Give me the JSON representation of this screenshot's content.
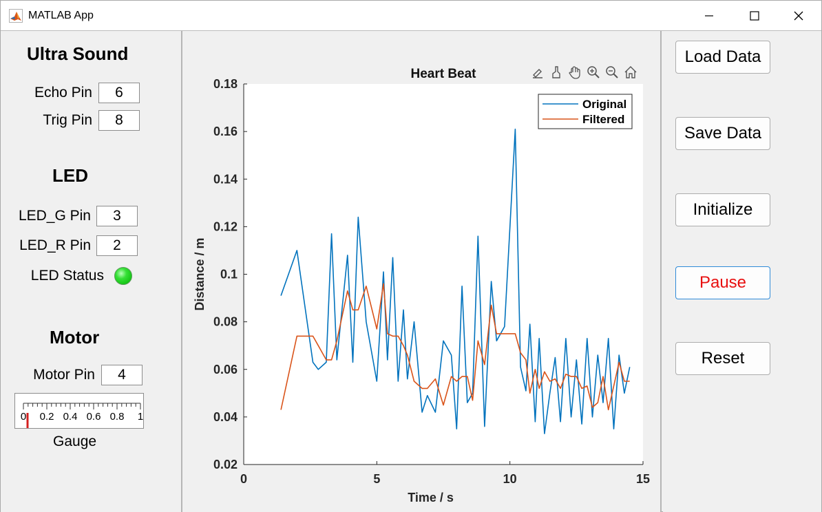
{
  "window": {
    "title": "MATLAB App"
  },
  "left": {
    "ultrasound_title": "Ultra Sound",
    "echo_label": "Echo Pin",
    "echo_value": "6",
    "trig_label": "Trig Pin",
    "trig_value": "8",
    "led_title": "LED",
    "ledg_label": "LED_G Pin",
    "ledg_value": "3",
    "ledr_label": "LED_R Pin",
    "ledr_value": "2",
    "led_status_label": "LED Status",
    "led_status_color": "#22d022",
    "motor_title": "Motor",
    "motor_label": "Motor Pin",
    "motor_value": "4",
    "gauge_caption": "Gauge",
    "gauge_ticks": [
      "0",
      "0.2",
      "0.4",
      "0.6",
      "0.8",
      "1"
    ],
    "gauge_value": 0.0
  },
  "toolbar_icons": [
    "brush-edit-icon",
    "data-brush-icon",
    "pan-hand-icon",
    "zoom-in-icon",
    "zoom-out-icon",
    "home-icon"
  ],
  "buttons": {
    "load": "Load Data",
    "save": "Save Data",
    "initialize": "Initialize",
    "pause": "Pause",
    "reset": "Reset",
    "pause_color": "#e81010"
  },
  "chart_data": {
    "type": "line",
    "title": "Heart Beat",
    "xlabel": "Time / s",
    "ylabel": "Distance / m",
    "xlim": [
      0,
      15
    ],
    "ylim": [
      0.02,
      0.18
    ],
    "xticks": [
      "0",
      "5",
      "10",
      "15"
    ],
    "yticks": [
      "0.02",
      "0.04",
      "0.06",
      "0.08",
      "0.1",
      "0.12",
      "0.14",
      "0.16",
      "0.18"
    ],
    "legend_position": "top-right",
    "grid": false,
    "series": [
      {
        "name": "Original",
        "color": "#0072bd",
        "x": [
          1.4,
          2.0,
          2.6,
          2.8,
          3.1,
          3.3,
          3.5,
          3.9,
          4.1,
          4.3,
          4.6,
          5.0,
          5.25,
          5.4,
          5.6,
          5.8,
          6.0,
          6.15,
          6.4,
          6.7,
          6.9,
          7.2,
          7.5,
          7.8,
          8.0,
          8.2,
          8.4,
          8.6,
          8.8,
          9.05,
          9.3,
          9.5,
          9.8,
          10.2,
          10.4,
          10.6,
          10.75,
          10.95,
          11.1,
          11.3,
          11.5,
          11.7,
          11.9,
          12.1,
          12.3,
          12.5,
          12.7,
          12.9,
          13.1,
          13.3,
          13.5,
          13.7,
          13.9,
          14.1,
          14.3,
          14.5
        ],
        "y": [
          0.091,
          0.11,
          0.063,
          0.06,
          0.063,
          0.117,
          0.064,
          0.108,
          0.063,
          0.124,
          0.08,
          0.055,
          0.101,
          0.064,
          0.107,
          0.055,
          0.085,
          0.056,
          0.08,
          0.042,
          0.049,
          0.042,
          0.072,
          0.066,
          0.035,
          0.095,
          0.046,
          0.05,
          0.116,
          0.036,
          0.097,
          0.072,
          0.078,
          0.161,
          0.061,
          0.051,
          0.079,
          0.038,
          0.073,
          0.033,
          0.05,
          0.065,
          0.038,
          0.073,
          0.04,
          0.064,
          0.037,
          0.073,
          0.04,
          0.066,
          0.046,
          0.073,
          0.035,
          0.066,
          0.05,
          0.061
        ]
      },
      {
        "name": "Filtered",
        "color": "#d95319",
        "x": [
          1.4,
          2.0,
          2.6,
          2.8,
          3.1,
          3.3,
          3.5,
          3.9,
          4.1,
          4.3,
          4.6,
          5.0,
          5.25,
          5.4,
          5.6,
          5.8,
          6.0,
          6.15,
          6.4,
          6.7,
          6.9,
          7.2,
          7.5,
          7.8,
          8.0,
          8.2,
          8.4,
          8.6,
          8.8,
          9.05,
          9.3,
          9.5,
          9.8,
          10.2,
          10.4,
          10.6,
          10.75,
          10.95,
          11.1,
          11.3,
          11.5,
          11.7,
          11.9,
          12.1,
          12.3,
          12.5,
          12.7,
          12.9,
          13.1,
          13.3,
          13.5,
          13.7,
          13.9,
          14.1,
          14.3,
          14.5
        ],
        "y": [
          0.043,
          0.074,
          0.074,
          0.07,
          0.064,
          0.064,
          0.072,
          0.093,
          0.085,
          0.085,
          0.095,
          0.077,
          0.096,
          0.075,
          0.074,
          0.074,
          0.07,
          0.066,
          0.055,
          0.052,
          0.052,
          0.056,
          0.045,
          0.057,
          0.055,
          0.057,
          0.057,
          0.047,
          0.072,
          0.062,
          0.087,
          0.075,
          0.075,
          0.075,
          0.067,
          0.064,
          0.05,
          0.06,
          0.052,
          0.059,
          0.055,
          0.056,
          0.052,
          0.058,
          0.057,
          0.057,
          0.052,
          0.053,
          0.044,
          0.046,
          0.057,
          0.043,
          0.053,
          0.063,
          0.055,
          0.055
        ]
      }
    ]
  }
}
